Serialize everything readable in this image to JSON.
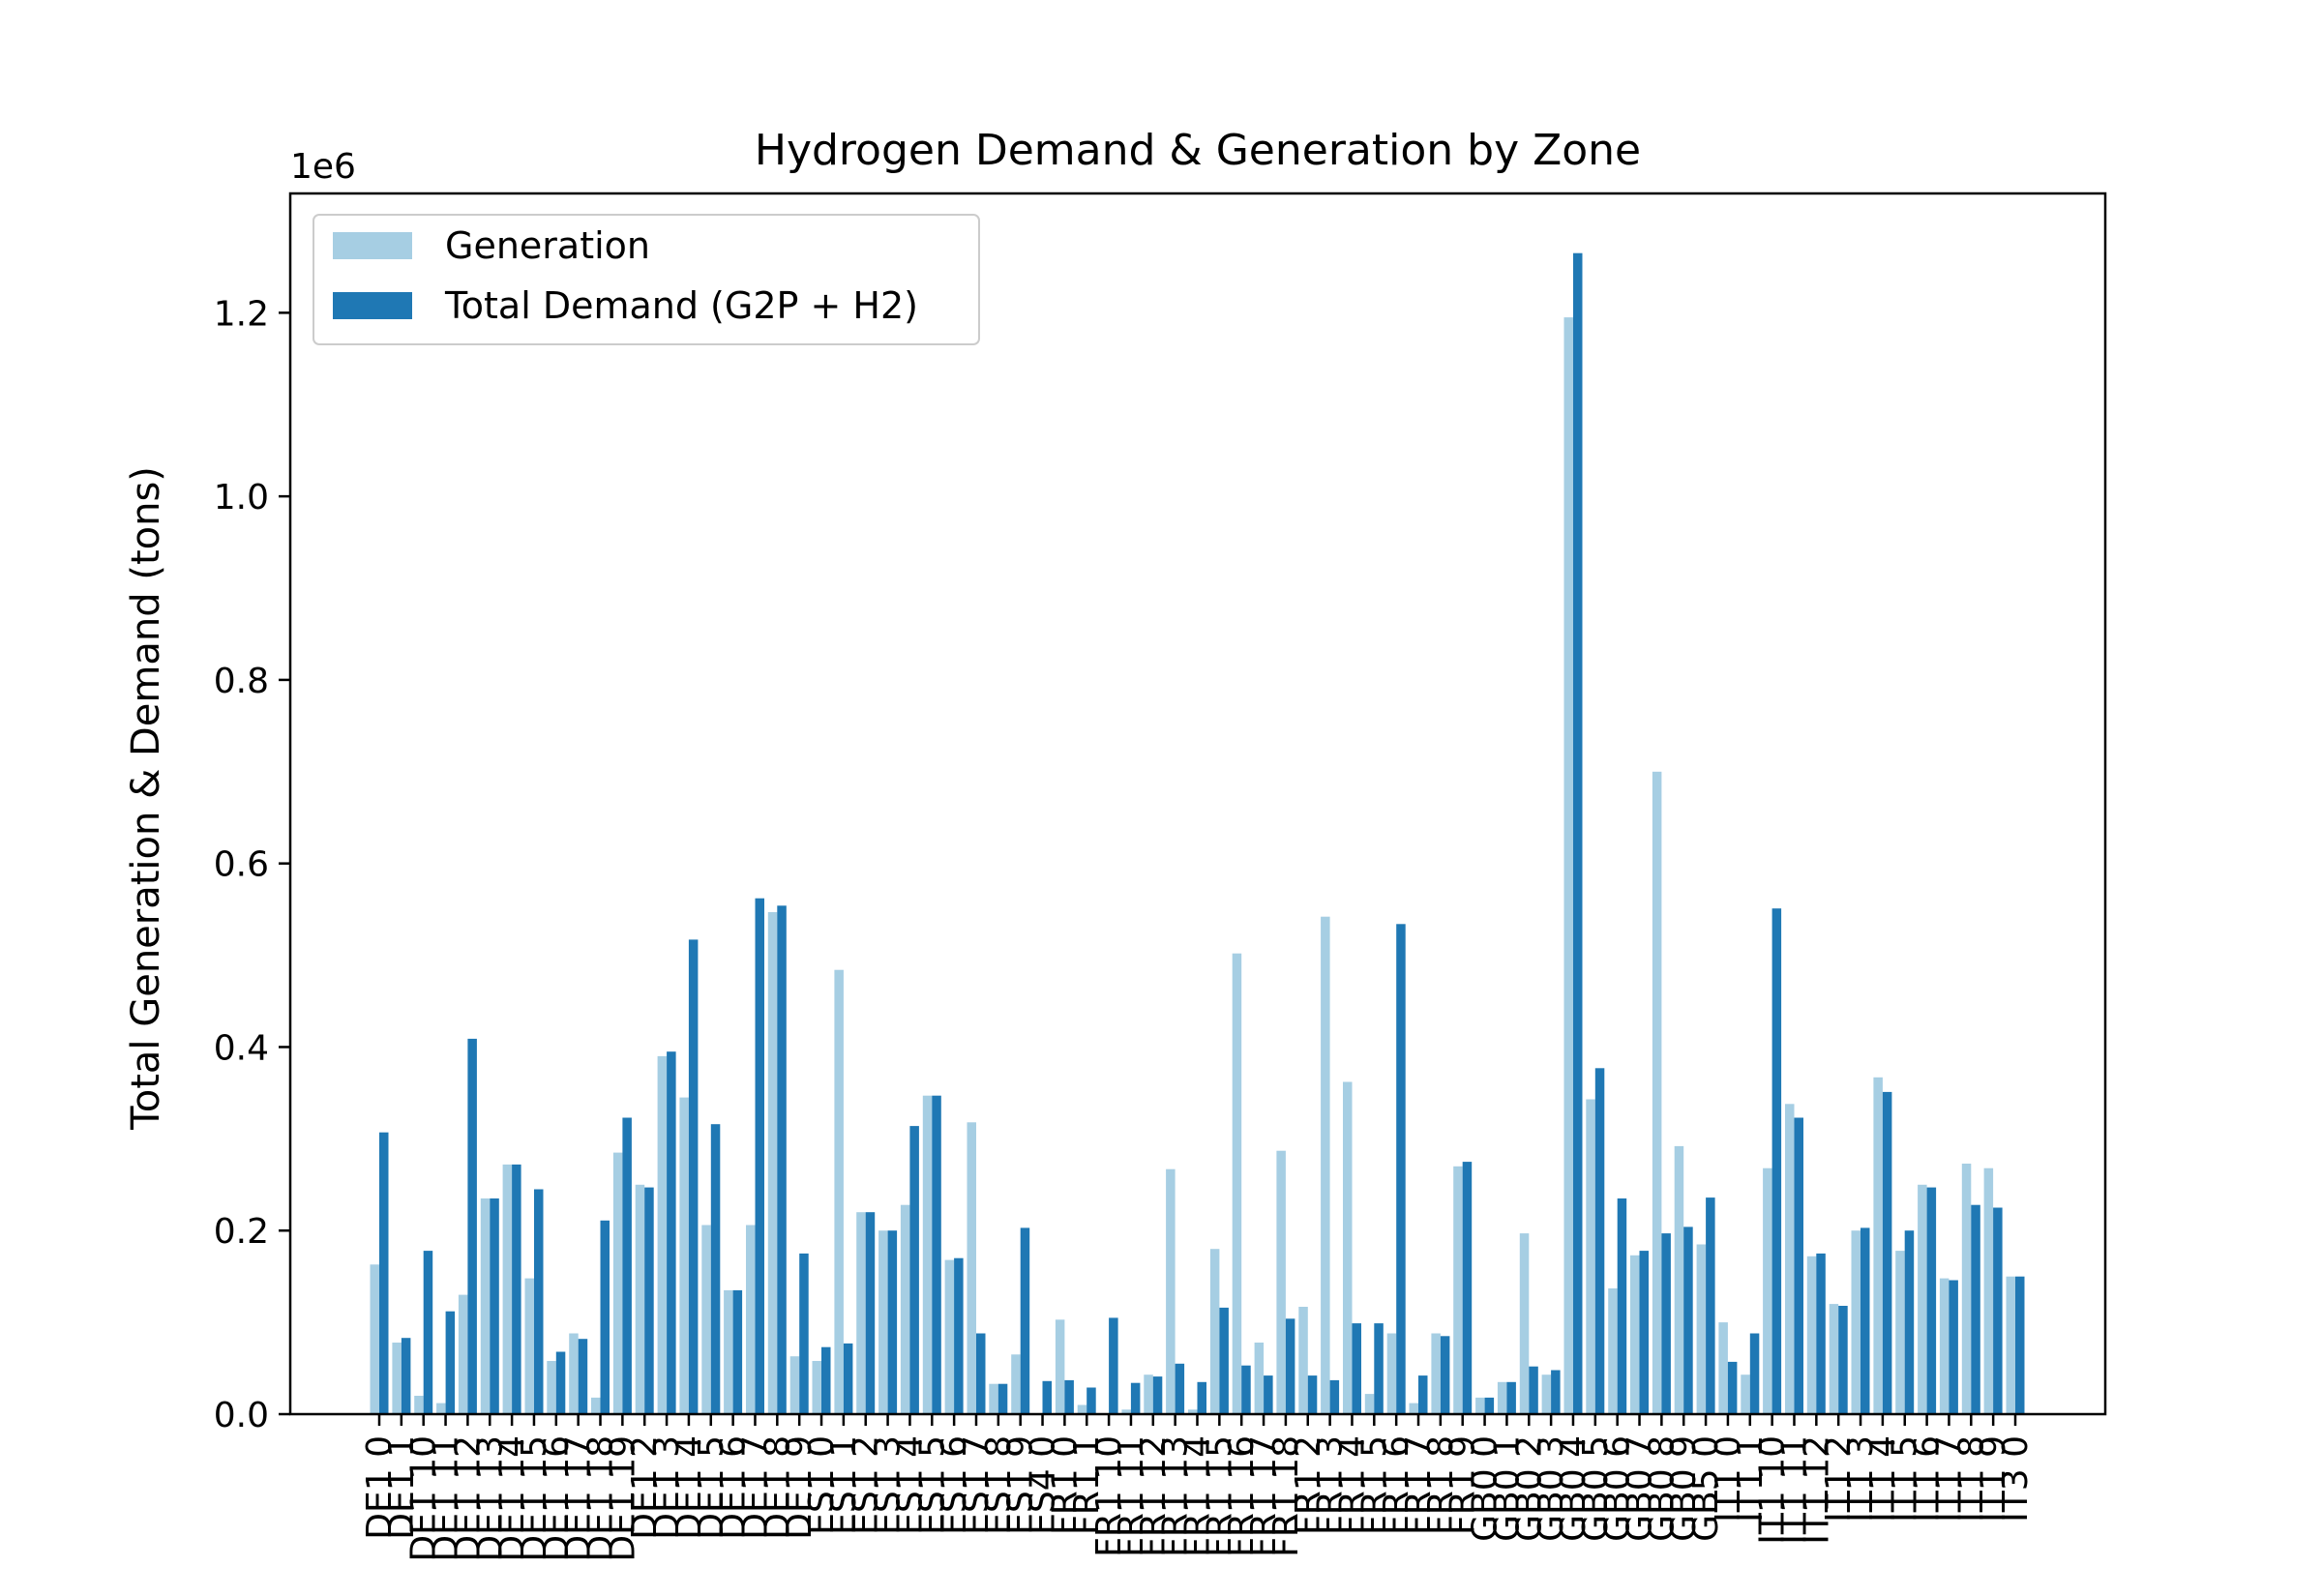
{
  "chart_data": {
    "type": "bar",
    "title": "Hydrogen Demand & Generation by Zone",
    "xlabel": "",
    "ylabel": "Total Generation & Demand (tons)",
    "y_offset_label": "1e6",
    "y_scale": 1000000,
    "ylim": [
      0,
      1330000
    ],
    "y_ticks": [
      0,
      200000,
      400000,
      600000,
      800000,
      1000000,
      1200000
    ],
    "y_tick_labels": [
      "0.0",
      "0.2",
      "0.4",
      "0.6",
      "0.8",
      "1.0",
      "1.2"
    ],
    "grid": false,
    "legend_position": "top-left",
    "categories": [
      "DE1 0",
      "DE1 1",
      "DE1 10",
      "DE1 11",
      "DE1 12",
      "DE1 13",
      "DE1 14",
      "DE1 15",
      "DE1 16",
      "DE1 17",
      "DE1 18",
      "DE1 19",
      "DE1 2",
      "DE1 3",
      "DE1 4",
      "DE1 5",
      "DE1 6",
      "DE1 7",
      "DE1 8",
      "DE1 9",
      "ES1 0",
      "ES1 1",
      "ES1 2",
      "ES1 3",
      "ES1 4",
      "ES1 5",
      "ES1 6",
      "ES1 7",
      "ES1 8",
      "ES1 9",
      "ES4 0",
      "FR1 0",
      "FR1 1",
      "FR1 10",
      "FR1 11",
      "FR1 12",
      "FR1 13",
      "FR1 14",
      "FR1 15",
      "FR1 16",
      "FR1 17",
      "FR1 18",
      "FR1 2",
      "FR1 3",
      "FR1 4",
      "FR1 5",
      "FR1 6",
      "FR1 7",
      "FR1 8",
      "FR1 9",
      "GB0 0",
      "GB0 1",
      "GB0 2",
      "GB0 3",
      "GB0 4",
      "GB0 5",
      "GB0 6",
      "GB0 7",
      "GB0 8",
      "GB0 9",
      "GB5 0",
      "IT1 0",
      "IT1 1",
      "IT1 10",
      "IT1 11",
      "IT1 12",
      "IT1 2",
      "IT1 3",
      "IT1 4",
      "IT1 5",
      "IT1 6",
      "IT1 7",
      "IT1 8",
      "IT1 9",
      "IT3 0"
    ],
    "series": [
      {
        "name": "Generation",
        "color": "#a6cee3",
        "values": [
          163000,
          78000,
          20000,
          12000,
          130000,
          235000,
          272000,
          148000,
          58000,
          88000,
          18000,
          285000,
          250000,
          390000,
          345000,
          206000,
          135000,
          206000,
          547000,
          63000,
          58000,
          484000,
          220000,
          200000,
          228000,
          347000,
          168000,
          318000,
          33000,
          65000,
          0,
          103000,
          10000,
          0,
          5000,
          43000,
          267000,
          5000,
          180000,
          502000,
          78000,
          287000,
          117000,
          542000,
          362000,
          22000,
          88000,
          12000,
          88000,
          270000,
          18000,
          35000,
          197000,
          43000,
          1195000,
          343000,
          137000,
          173000,
          700000,
          292000,
          185000,
          100000,
          43000,
          268000,
          338000,
          172000,
          120000,
          200000,
          367000,
          178000,
          250000,
          148000,
          273000,
          268000,
          150000
        ]
      },
      {
        "name": "Total Demand (G2P + H2)",
        "color": "#1f78b4",
        "values": [
          307000,
          83000,
          178000,
          112000,
          409000,
          235000,
          272000,
          245000,
          68000,
          82000,
          211000,
          323000,
          247000,
          395000,
          517000,
          316000,
          135000,
          562000,
          554000,
          175000,
          73000,
          77000,
          220000,
          200000,
          314000,
          347000,
          170000,
          88000,
          33000,
          203000,
          36000,
          37000,
          29000,
          105000,
          34000,
          41000,
          55000,
          35000,
          116000,
          53000,
          42000,
          104000,
          42000,
          37000,
          99000,
          99000,
          534000,
          42000,
          85000,
          275000,
          18000,
          35000,
          52000,
          48000,
          1265000,
          377000,
          235000,
          178000,
          197000,
          204000,
          236000,
          57000,
          88000,
          551000,
          323000,
          175000,
          118000,
          203000,
          351000,
          200000,
          247000,
          146000,
          228000,
          225000,
          150000
        ]
      }
    ]
  }
}
